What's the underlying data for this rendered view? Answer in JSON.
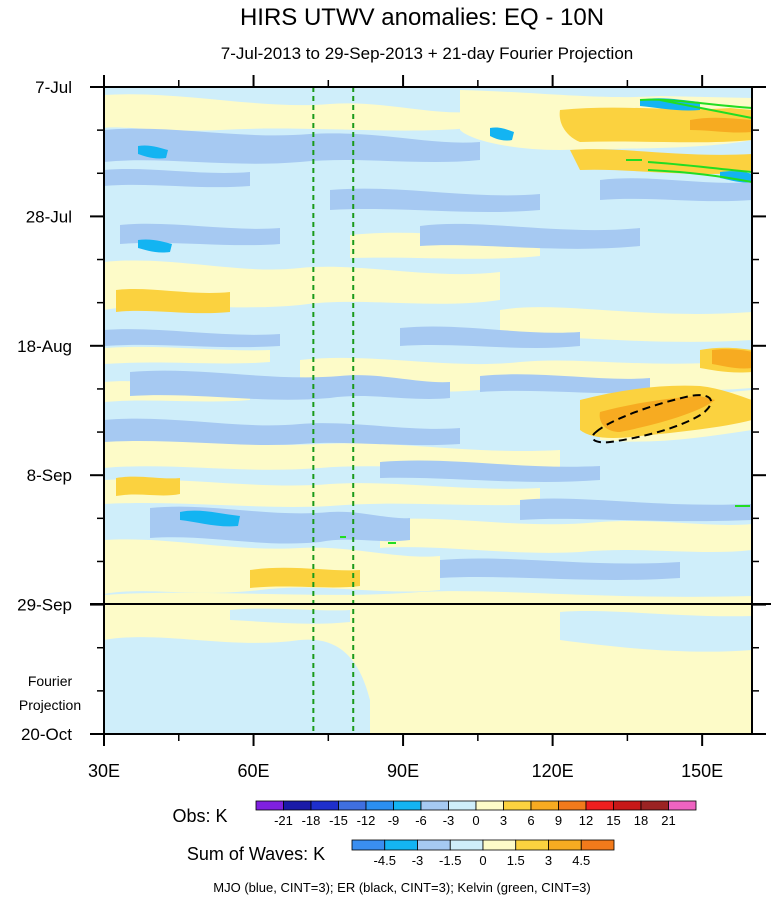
{
  "chart_data": {
    "type": "heatmap",
    "title": "HIRS UTWV anomalies: EQ - 10N",
    "subtitle": "7-Jul-2013 to 29-Sep-2013 + 21-day Fourier Projection",
    "xlabel": "",
    "ylabel": "",
    "x_ticks": [
      "30E",
      "60E",
      "90E",
      "120E",
      "150E"
    ],
    "x_tick_values": [
      30,
      60,
      90,
      120,
      150
    ],
    "xlim": [
      30,
      160
    ],
    "y_ticks": [
      "7-Jul",
      "28-Jul",
      "18-Aug",
      "8-Sep",
      "29-Sep",
      "20-Oct"
    ],
    "y_tick_days": [
      0,
      21,
      42,
      63,
      84,
      105
    ],
    "fourier_label": [
      "Fourier",
      "Projection"
    ],
    "observation_end_label": "29-Sep",
    "reference_lines_lon": [
      72,
      80
    ],
    "obs_legend": {
      "label": "Obs: K",
      "levels": [
        "-21",
        "-18",
        "-15",
        "-12",
        "-9",
        "-6",
        "-3",
        "0",
        "3",
        "6",
        "9",
        "12",
        "15",
        "18",
        "21"
      ],
      "colors": [
        "#7f20e0",
        "#1a1aa8",
        "#1e2fcc",
        "#3f6fe0",
        "#2b8ff0",
        "#13b4f2",
        "#a6c9f2",
        "#cfeefa",
        "#fdfbc8",
        "#fbd23f",
        "#f7ab21",
        "#f27a1b",
        "#ee1f1f",
        "#c71818",
        "#9b2323",
        "#ef63c1"
      ]
    },
    "waves_legend": {
      "label": "Sum of Waves: K",
      "levels": [
        "-4.5",
        "-3",
        "-1.5",
        "0",
        "1.5",
        "3",
        "4.5"
      ],
      "colors": [
        "#3a8ef0",
        "#14b4f2",
        "#a6c9f2",
        "#cfeefa",
        "#fdfbc8",
        "#fbd23f",
        "#f7ab21",
        "#f27a1b"
      ]
    },
    "footer": "MJO (blue, CINT=3); ER (black, CINT=3); Kelvin (green, CINT=3)"
  }
}
